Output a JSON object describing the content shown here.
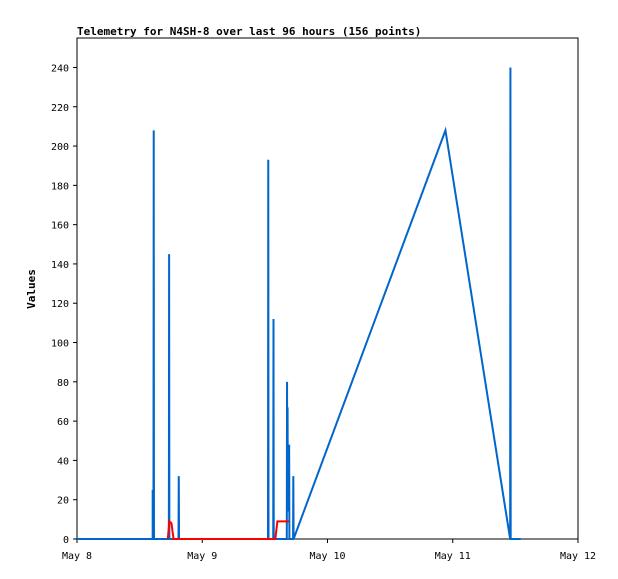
{
  "chart_data": {
    "type": "line",
    "title": "Telemetry for N4SH-8 over last 96 hours (156 points)",
    "xlabel": "",
    "ylabel": "Values",
    "x_ticks": [
      "May 8",
      "May 9",
      "May 10",
      "May 11",
      "May 12"
    ],
    "xlim_hours": [
      0,
      96
    ],
    "ylim": [
      0,
      255
    ],
    "y_ticks": [
      0,
      20,
      40,
      60,
      80,
      100,
      120,
      140,
      160,
      180,
      200,
      220,
      240
    ],
    "grid": false,
    "legend": "none",
    "series": [
      {
        "color": "#0066cc",
        "points": [
          [
            0,
            0
          ],
          [
            14.5,
            0
          ],
          [
            14.5,
            25
          ],
          [
            14.55,
            0
          ],
          [
            14.65,
            0
          ],
          [
            14.7,
            208
          ],
          [
            14.75,
            0
          ],
          [
            17.6,
            0
          ],
          [
            17.65,
            145
          ],
          [
            17.7,
            0
          ],
          [
            19.45,
            0
          ],
          [
            19.5,
            32
          ],
          [
            19.55,
            0
          ],
          [
            36.6,
            0
          ],
          [
            36.65,
            193
          ],
          [
            36.7,
            0
          ],
          [
            37.6,
            0
          ],
          [
            37.65,
            112
          ],
          [
            37.7,
            0
          ],
          [
            40.2,
            0
          ],
          [
            40.25,
            80
          ],
          [
            40.3,
            15
          ],
          [
            40.35,
            67
          ],
          [
            40.4,
            14
          ],
          [
            40.45,
            40
          ],
          [
            40.55,
            17
          ],
          [
            40.65,
            48
          ],
          [
            40.7,
            0
          ],
          [
            41.4,
            0
          ],
          [
            41.45,
            32
          ],
          [
            41.5,
            0
          ],
          [
            70.6,
            208
          ],
          [
            83.0,
            0
          ],
          [
            83.05,
            240
          ],
          [
            83.1,
            0
          ],
          [
            85,
            0
          ]
        ]
      },
      {
        "color": "#ff0000",
        "points": [
          [
            17.4,
            0
          ],
          [
            17.7,
            9
          ],
          [
            18.1,
            8
          ],
          [
            18.5,
            0
          ],
          [
            38.0,
            0
          ],
          [
            38.4,
            9
          ],
          [
            40.6,
            9
          ]
        ]
      }
    ]
  }
}
